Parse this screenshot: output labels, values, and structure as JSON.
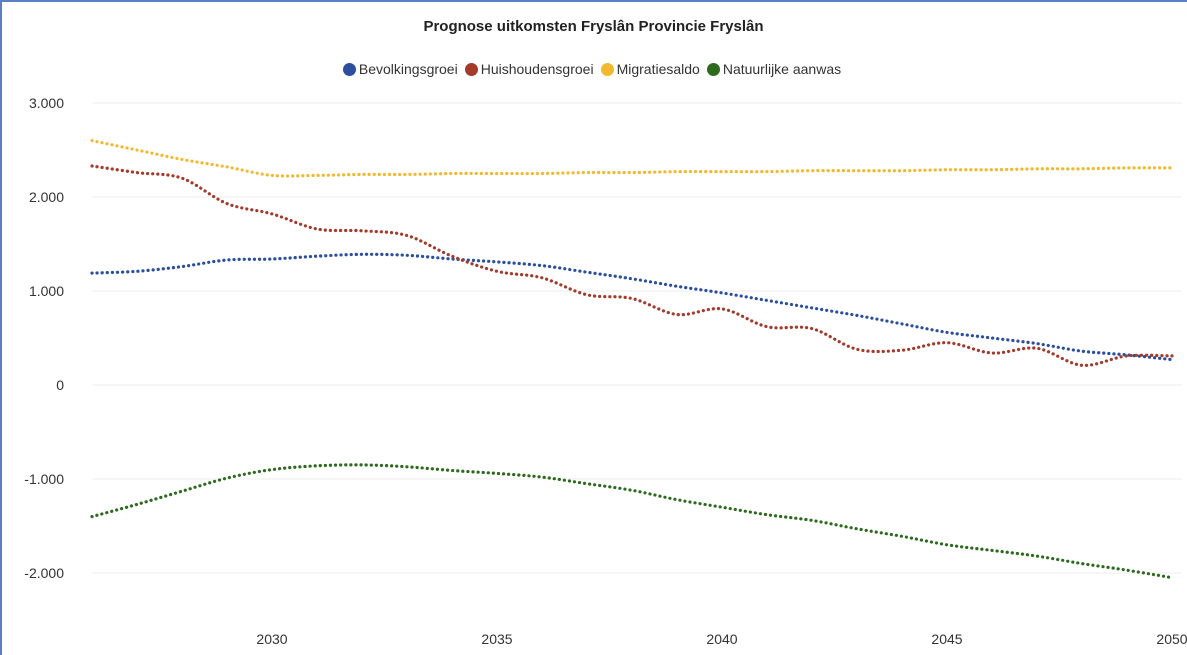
{
  "chart_data": {
    "type": "line",
    "title": "Prognose uitkomsten Fryslân Provincie Fryslân",
    "xlabel": "",
    "ylabel": "",
    "x": [
      2026,
      2027,
      2028,
      2029,
      2030,
      2031,
      2032,
      2033,
      2034,
      2035,
      2036,
      2037,
      2038,
      2039,
      2040,
      2041,
      2042,
      2043,
      2044,
      2045,
      2046,
      2047,
      2048,
      2049,
      2050
    ],
    "xlim": [
      2026,
      2050
    ],
    "ylim": [
      -2600,
      3000
    ],
    "x_ticks": [
      "2030",
      "2035",
      "2040",
      "2045",
      "2050"
    ],
    "x_tick_values": [
      2030,
      2035,
      2040,
      2045,
      2050
    ],
    "y_ticks": [
      "3.000",
      "2.000",
      "1.000",
      "0",
      "-1.000",
      "-2.000"
    ],
    "y_tick_values": [
      3000,
      2000,
      1000,
      0,
      -1000,
      -2000
    ],
    "legend_position": "top-center",
    "grid": true,
    "line_style": "dotted",
    "series": [
      {
        "name": "Bevolkingsgroei",
        "color": "#2b4f9e",
        "values": [
          1190,
          1210,
          1260,
          1330,
          1340,
          1370,
          1390,
          1380,
          1340,
          1310,
          1270,
          1200,
          1130,
          1050,
          980,
          900,
          820,
          740,
          650,
          560,
          500,
          440,
          360,
          320,
          270
        ]
      },
      {
        "name": "Huishoudensgroei",
        "color": "#a33a2a",
        "values": [
          2330,
          2260,
          2200,
          1930,
          1820,
          1660,
          1640,
          1590,
          1370,
          1210,
          1140,
          960,
          920,
          750,
          810,
          620,
          600,
          380,
          370,
          450,
          340,
          390,
          210,
          310,
          310
        ]
      },
      {
        "name": "Migratiesaldo",
        "color": "#f3b92e",
        "values": [
          2600,
          2500,
          2400,
          2320,
          2230,
          2230,
          2240,
          2240,
          2250,
          2250,
          2250,
          2260,
          2260,
          2270,
          2270,
          2270,
          2280,
          2280,
          2280,
          2290,
          2290,
          2300,
          2300,
          2310,
          2310
        ]
      },
      {
        "name": "Natuurlijke aanwas",
        "color": "#2d6a1e",
        "values": [
          -1400,
          -1270,
          -1130,
          -990,
          -900,
          -860,
          -850,
          -870,
          -910,
          -940,
          -980,
          -1050,
          -1120,
          -1220,
          -1300,
          -1380,
          -1440,
          -1530,
          -1610,
          -1700,
          -1760,
          -1820,
          -1900,
          -1970,
          -2050
        ]
      }
    ]
  }
}
